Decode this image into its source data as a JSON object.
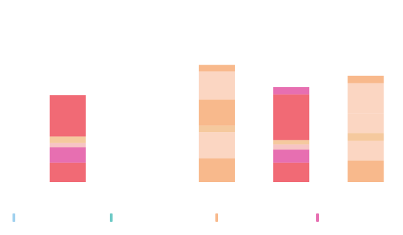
{
  "colors": {
    "bg": "#ffffff",
    "text": "#c4c4c4",
    "c_light_blue": "#9ed0ee",
    "c_teal": "#6cc9c5",
    "c_orange": "#f8b98c",
    "c_red": "#f16a75",
    "c_orange_mid": "#f5c99e",
    "c_magenta": "#e76fb1",
    "c_pink_band": "#f7c4c4",
    "c_light_peach": "#fbd6c2"
  },
  "chart_data": {
    "type": "bar",
    "stacked": true,
    "grid": false,
    "legend_position": "bottom",
    "ylim": [
      0,
      4
    ],
    "yticks": [
      "",
      "",
      ""
    ],
    "categories": [
      "",
      "",
      "",
      "",
      ""
    ],
    "totals": [
      "",
      "",
      "",
      "",
      ""
    ],
    "segments": [
      [
        {
          "value": 0.45,
          "color": "c_red"
        },
        {
          "value": 0.35,
          "color": "c_magenta"
        },
        {
          "value": 0.1,
          "color": "c_pink_band"
        },
        {
          "value": 0.15,
          "color": "c_orange_mid"
        },
        {
          "value": 0.95,
          "color": "c_red"
        }
      ],
      [],
      [
        {
          "value": 0.55,
          "color": "c_orange"
        },
        {
          "value": 0.6,
          "color": "c_light_peach"
        },
        {
          "value": 0.15,
          "color": "c_orange_mid"
        },
        {
          "value": 0.6,
          "color": "c_orange"
        },
        {
          "value": 0.65,
          "color": "c_light_peach"
        },
        {
          "value": 0.15,
          "color": "c_orange"
        }
      ],
      [
        {
          "value": 0.45,
          "color": "c_red"
        },
        {
          "value": 0.3,
          "color": "c_magenta"
        },
        {
          "value": 0.12,
          "color": "c_pink_band"
        },
        {
          "value": 0.1,
          "color": "c_orange_mid"
        },
        {
          "value": 1.05,
          "color": "c_red"
        },
        {
          "value": 0.17,
          "color": "c_magenta"
        }
      ],
      [
        {
          "value": 0.5,
          "color": "c_orange"
        },
        {
          "value": 0.45,
          "color": "c_light_peach"
        },
        {
          "value": 0.18,
          "color": "c_orange_mid"
        },
        {
          "value": 0.45,
          "color": "c_light_peach"
        },
        {
          "value": 0.7,
          "color": "c_light_peach"
        },
        {
          "value": 0.17,
          "color": "c_orange"
        }
      ]
    ]
  },
  "legend": [
    {
      "name": "",
      "color": "c_light_blue"
    },
    {
      "name": "",
      "color": "c_teal"
    },
    {
      "name": "",
      "color": "c_orange"
    },
    {
      "name": "",
      "color": "c_magenta"
    }
  ]
}
